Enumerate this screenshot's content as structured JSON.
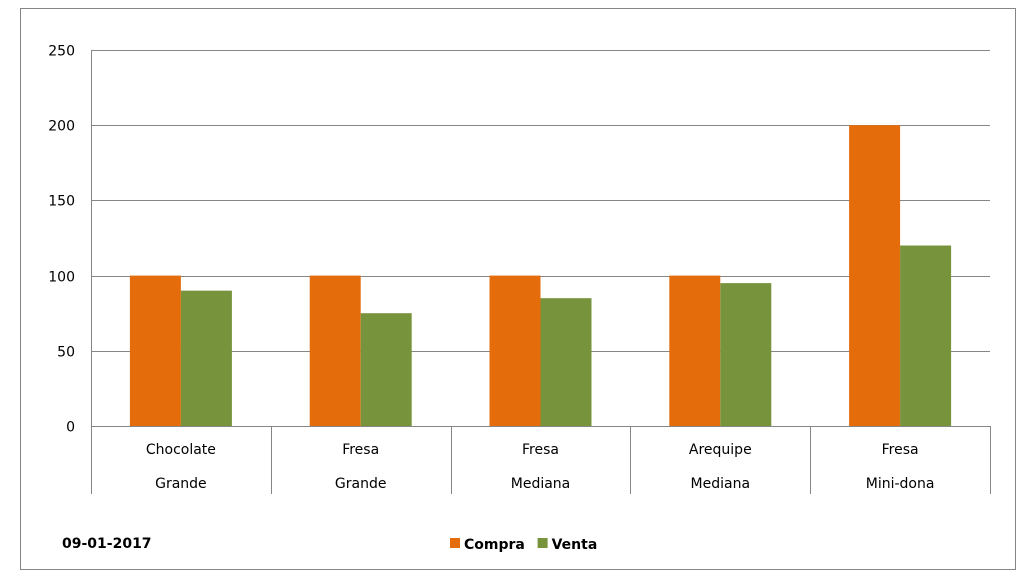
{
  "chart_data": {
    "type": "bar",
    "categories": [
      {
        "top": "Chocolate",
        "bottom": "Grande"
      },
      {
        "top": "Fresa",
        "bottom": "Grande"
      },
      {
        "top": "Fresa",
        "bottom": "Mediana"
      },
      {
        "top": "Arequipe",
        "bottom": "Mediana"
      },
      {
        "top": "Fresa",
        "bottom": "Mini-dona"
      }
    ],
    "series": [
      {
        "name": "Compra",
        "color": "#E46C0A",
        "values": [
          100,
          100,
          100,
          100,
          200
        ]
      },
      {
        "name": "Venta",
        "color": "#77933C",
        "values": [
          90,
          75,
          85,
          95,
          120
        ]
      }
    ],
    "ylim": [
      0,
      250
    ],
    "yticks": [
      0,
      50,
      100,
      150,
      200,
      250
    ],
    "grid": true,
    "legend_position": "bottom-center",
    "annotation": "09-01-2017"
  }
}
